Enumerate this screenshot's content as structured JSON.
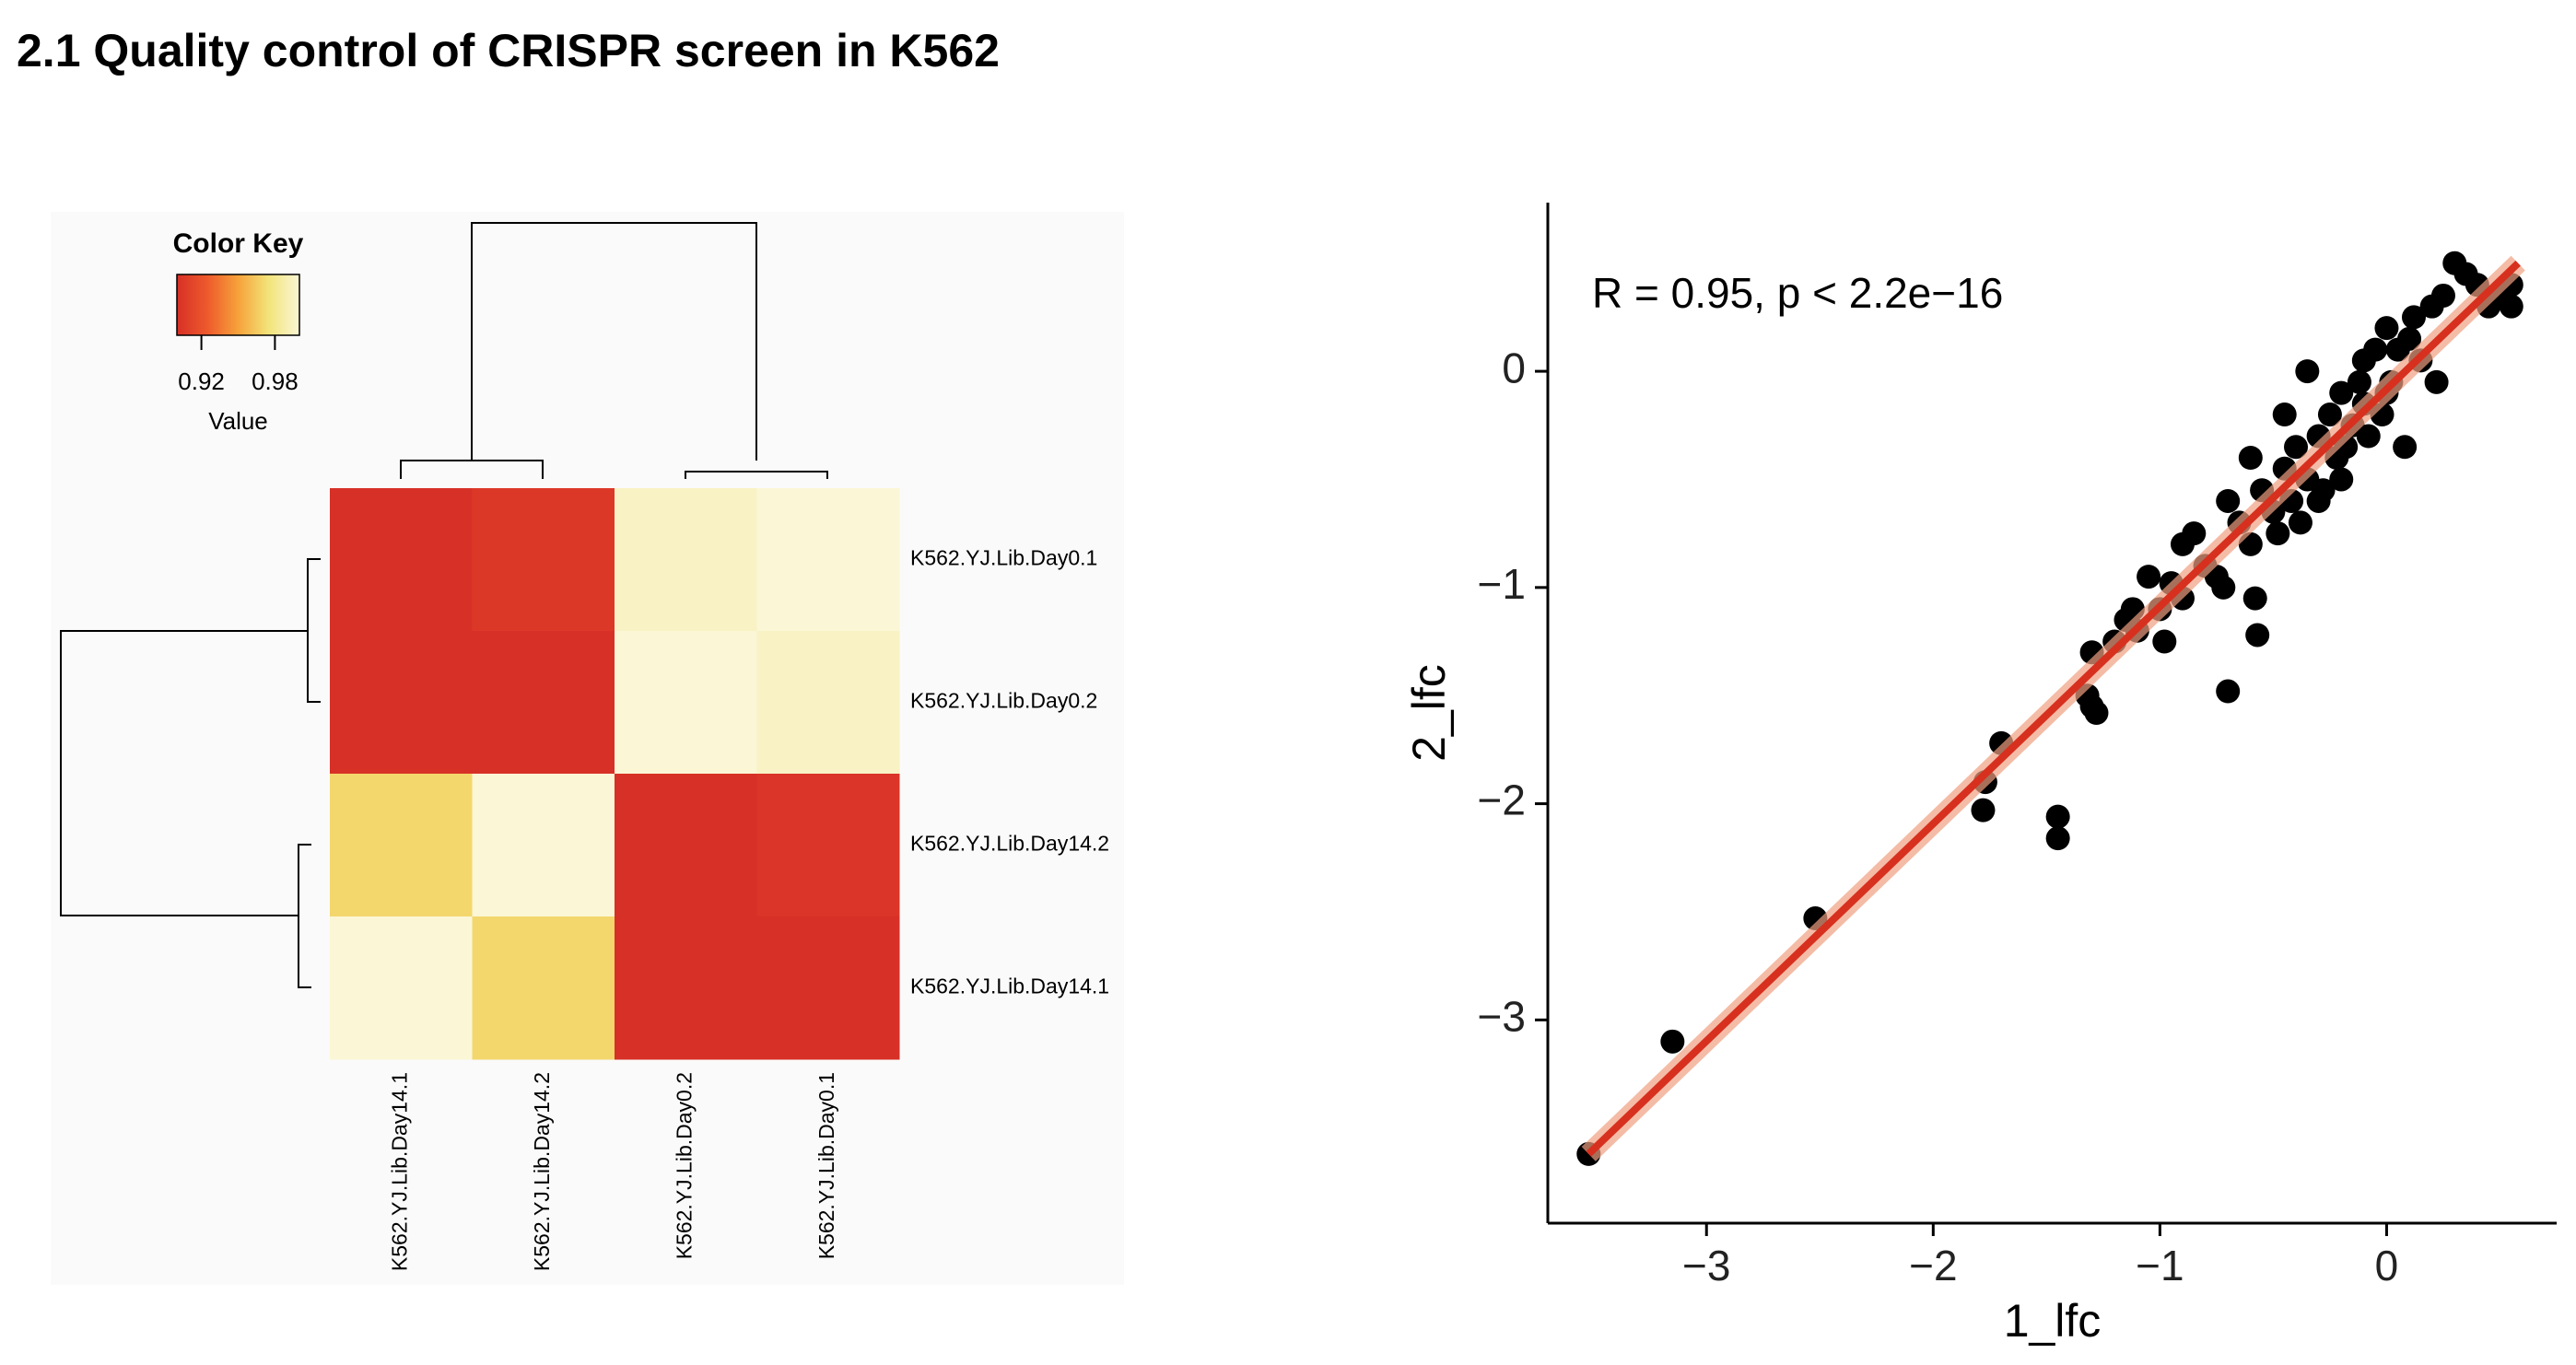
{
  "header": {
    "title": "2.1 Quality control of CRISPR screen in K562"
  },
  "chart_data": [
    {
      "type": "heatmap",
      "key_title": "Color Key",
      "key_label": "Value",
      "zlim": [
        0.9,
        1.0
      ],
      "key_ticks": [
        0.92,
        0.98
      ],
      "colormap": [
        "#d73027",
        "#ee5a2c",
        "#f6a23a",
        "#f2e47a",
        "#fbf6d6"
      ],
      "rows": [
        "K562.YJ.Lib.Day0.1",
        "K562.YJ.Lib.Day0.2",
        "K562.YJ.Lib.Day14.2",
        "K562.YJ.Lib.Day14.1"
      ],
      "columns": [
        "K562.YJ.Lib.Day14.1",
        "K562.YJ.Lib.Day14.2",
        "K562.YJ.Lib.Day0.2",
        "K562.YJ.Lib.Day0.1"
      ],
      "values": [
        [
          0.9,
          0.905,
          0.995,
          1.0
        ],
        [
          0.9,
          0.9,
          1.0,
          0.995
        ],
        [
          0.97,
          1.0,
          0.9,
          0.903
        ],
        [
          1.0,
          0.97,
          0.9,
          0.9
        ]
      ]
    },
    {
      "type": "scatter",
      "annotation": "R = 0.95, p < 2.2e−16",
      "x_label": "1_lfc",
      "y_label": "2_lfc",
      "xlim": [
        -3.7,
        0.75
      ],
      "ylim": [
        -3.94,
        0.78
      ],
      "xticks": [
        {
          "value": -3,
          "label": "−3"
        },
        {
          "value": -2,
          "label": "−2"
        },
        {
          "value": -1,
          "label": "−1"
        },
        0
      ],
      "yticks": [
        {
          "value": -3,
          "label": "−3"
        },
        {
          "value": -2,
          "label": "−2"
        },
        {
          "value": -1,
          "label": "−1"
        },
        0
      ],
      "color": "#000000",
      "fit": {
        "x": [
          -3.52,
          0.58
        ],
        "y": [
          -3.62,
          0.5
        ],
        "color": "#d7301f",
        "band_color": "#f0a080"
      },
      "x": [
        -3.52,
        -3.15,
        -2.52,
        -1.78,
        -1.77,
        -1.7,
        -1.45,
        -1.45,
        -1.32,
        -1.3,
        -1.28,
        -1.3,
        -1.2,
        -1.12,
        -1.1,
        -1.05,
        -1.0,
        -0.98,
        -0.95,
        -0.9,
        -0.85,
        -0.8,
        -0.75,
        -0.72,
        -0.7,
        -0.65,
        -0.6,
        -0.58,
        -0.57,
        -0.55,
        -0.5,
        -0.48,
        -0.45,
        -0.42,
        -0.4,
        -0.38,
        -0.35,
        -0.3,
        -0.28,
        -0.25,
        -0.22,
        -0.2,
        -0.18,
        -0.15,
        -0.12,
        -0.1,
        -0.08,
        -0.05,
        -0.02,
        0.0,
        0.02,
        0.05,
        0.08,
        0.1,
        0.12,
        0.15,
        0.2,
        0.22,
        0.25,
        0.3,
        0.35,
        0.4,
        0.45,
        0.5,
        0.55,
        0.55,
        -0.6,
        -0.45,
        -0.3,
        -0.2,
        -0.35,
        -0.1,
        0.0,
        -0.7,
        -0.9,
        -1.15
      ],
      "y": [
        -3.62,
        -3.1,
        -2.53,
        -2.03,
        -1.9,
        -1.72,
        -2.06,
        -2.16,
        -1.5,
        -1.55,
        -1.58,
        -1.3,
        -1.25,
        -1.1,
        -1.2,
        -0.95,
        -1.1,
        -1.25,
        -0.98,
        -1.05,
        -0.75,
        -0.9,
        -0.95,
        -1.0,
        -1.48,
        -0.7,
        -0.8,
        -1.05,
        -1.22,
        -0.55,
        -0.65,
        -0.75,
        -0.45,
        -0.6,
        -0.35,
        -0.7,
        -0.5,
        -0.3,
        -0.55,
        -0.2,
        -0.4,
        -0.1,
        -0.35,
        -0.25,
        -0.05,
        0.05,
        -0.3,
        0.1,
        -0.2,
        0.2,
        -0.05,
        0.1,
        -0.35,
        0.15,
        0.25,
        0.05,
        0.3,
        -0.05,
        0.35,
        0.5,
        0.45,
        0.4,
        0.3,
        0.35,
        0.4,
        0.3,
        -0.4,
        -0.2,
        -0.6,
        -0.5,
        0.0,
        -0.15,
        -0.1,
        -0.6,
        -0.8,
        -1.15
      ]
    }
  ]
}
